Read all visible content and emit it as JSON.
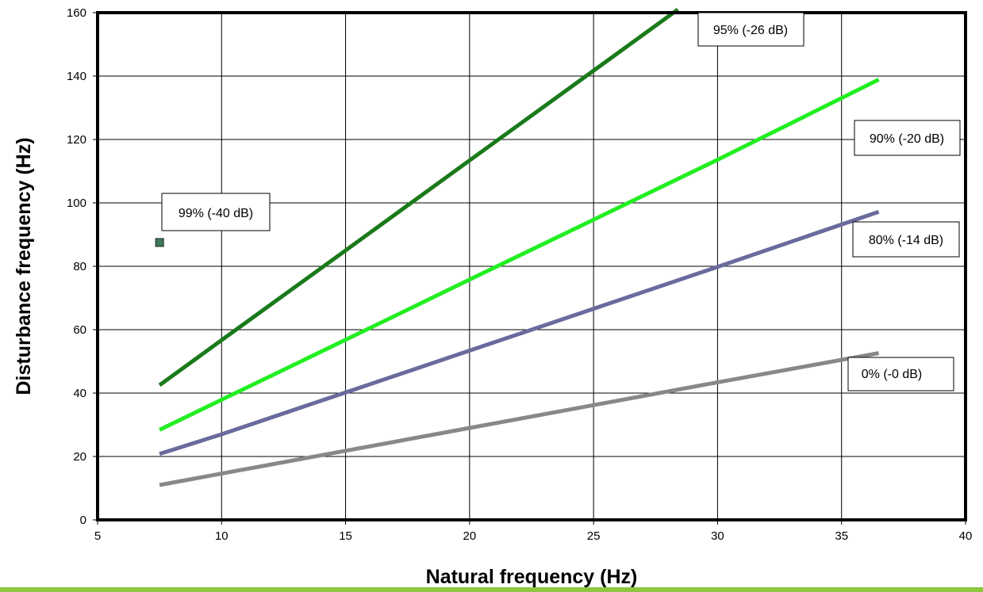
{
  "chart_data": {
    "type": "line",
    "title": "",
    "xlabel": "Natural frequency (Hz)",
    "ylabel": "Disturbance frequency (Hz)",
    "xlim": [
      5,
      40
    ],
    "ylim": [
      0,
      160
    ],
    "xticks": [
      5,
      10,
      15,
      20,
      25,
      30,
      35,
      40
    ],
    "yticks": [
      0,
      20,
      40,
      60,
      80,
      100,
      120,
      140,
      160
    ],
    "grid": true,
    "series": [
      {
        "name": "99% (-40 dB)",
        "color": "#3d7a5a",
        "marker": "square",
        "points": [
          [
            7.5,
            87.5
          ]
        ]
      },
      {
        "name": "95% (-26 dB)",
        "color": "#1a7a1a",
        "points": [
          [
            7.5,
            42.5
          ],
          [
            10,
            56.7
          ],
          [
            15,
            85.0
          ],
          [
            20,
            113.4
          ],
          [
            25,
            141.7
          ],
          [
            28.4,
            161.0
          ]
        ]
      },
      {
        "name": "90% (-20 dB)",
        "color": "#22ee22",
        "points": [
          [
            7.5,
            28.4
          ],
          [
            10,
            37.9
          ],
          [
            15,
            56.8
          ],
          [
            20,
            75.8
          ],
          [
            25,
            94.7
          ],
          [
            30,
            113.6
          ],
          [
            36.5,
            138.9
          ]
        ]
      },
      {
        "name": "80% (-14 dB)",
        "color": "#6a6a9e",
        "points": [
          [
            7.5,
            20.8
          ],
          [
            10,
            27.0
          ],
          [
            15,
            40.2
          ],
          [
            20,
            53.4
          ],
          [
            25,
            66.6
          ],
          [
            30,
            79.8
          ],
          [
            36.5,
            97.2
          ]
        ]
      },
      {
        "name": "0% (-0 dB)",
        "color": "#888888",
        "points": [
          [
            7.5,
            11.0
          ],
          [
            10,
            14.6
          ],
          [
            15,
            21.8
          ],
          [
            20,
            29.0
          ],
          [
            25,
            36.2
          ],
          [
            30,
            43.4
          ],
          [
            36.5,
            52.6
          ]
        ]
      }
    ],
    "annotations": [
      {
        "text": "95% (-26 dB)"
      },
      {
        "text": "90% (-20 dB)"
      },
      {
        "text": "80% (-14 dB)"
      },
      {
        "text": "0% (-0 dB)"
      },
      {
        "text": "99% (-40 dB)"
      }
    ]
  },
  "colors": {
    "bottom_rule": "#8dc63f",
    "grid": "#000000",
    "plot_border": "#000000"
  }
}
